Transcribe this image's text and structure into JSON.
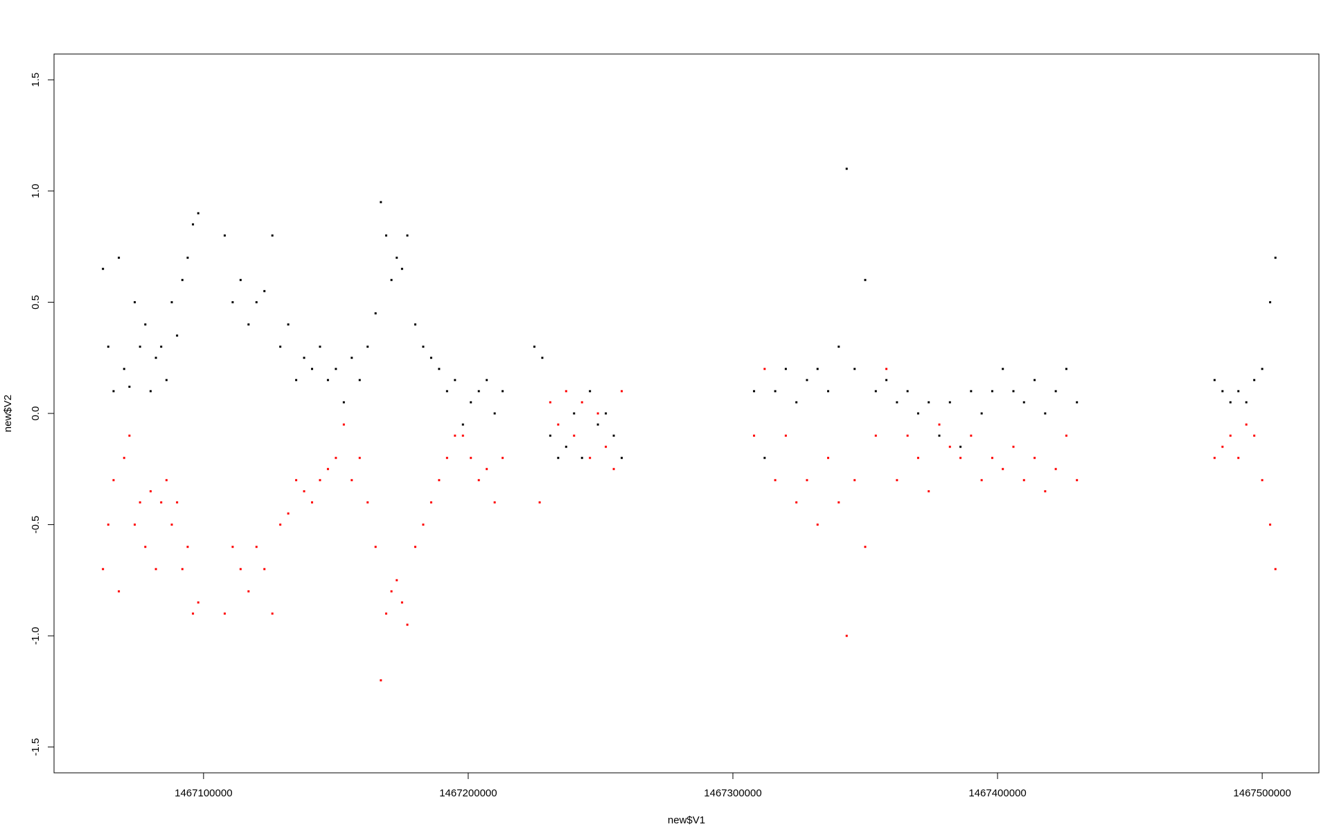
{
  "chart_data": {
    "type": "scatter",
    "xlabel": "new$V1",
    "ylabel": "new$V2",
    "xlim": [
      1467043506,
      1467521429
    ],
    "ylim": [
      -1.616,
      1.616
    ],
    "xticks": [
      1467100000,
      1467200000,
      1467300000,
      1467400000,
      1467500000
    ],
    "yticks": [
      -1.5,
      {
        "value": -1,
        "label": "-1.0"
      },
      -0.5,
      {
        "value": 0,
        "label": "0.0"
      },
      0.5,
      {
        "value": 1,
        "label": "1.0"
      },
      1.5
    ],
    "series": [
      {
        "color": "#000000",
        "x": [
          1467062000,
          1467064000,
          1467066000,
          1467068000,
          1467070000,
          1467072000,
          1467074000,
          1467076000,
          1467078000,
          1467080000,
          1467082000,
          1467084000,
          1467086000,
          1467088000,
          1467090000,
          1467092000,
          1467094000,
          1467096000,
          1467098000,
          1467108000,
          1467111000,
          1467114000,
          1467117000,
          1467120000,
          1467123000,
          1467126000,
          1467129000,
          1467132000,
          1467135000,
          1467138000,
          1467141000,
          1467144000,
          1467147000,
          1467150000,
          1467153000,
          1467156000,
          1467159000,
          1467162000,
          1467165000,
          1467167000,
          1467169000,
          1467171000,
          1467173000,
          1467175000,
          1467177000,
          1467180000,
          1467183000,
          1467186000,
          1467189000,
          1467192000,
          1467195000,
          1467198000,
          1467201000,
          1467204000,
          1467207000,
          1467210000,
          1467213000,
          1467225000,
          1467228000,
          1467231000,
          1467234000,
          1467237000,
          1467240000,
          1467243000,
          1467246000,
          1467249000,
          1467252000,
          1467255000,
          1467258000,
          1467308000,
          1467312000,
          1467316000,
          1467320000,
          1467324000,
          1467328000,
          1467332000,
          1467336000,
          1467340000,
          1467343000,
          1467346000,
          1467350000,
          1467354000,
          1467358000,
          1467362000,
          1467366000,
          1467370000,
          1467374000,
          1467378000,
          1467382000,
          1467386000,
          1467390000,
          1467394000,
          1467398000,
          1467402000,
          1467406000,
          1467410000,
          1467414000,
          1467418000,
          1467422000,
          1467426000,
          1467430000,
          1467482000,
          1467485000,
          1467488000,
          1467491000,
          1467494000,
          1467497000,
          1467500000,
          1467503000,
          1467505000
        ],
        "values": [
          0.65,
          0.3,
          0.1,
          0.7,
          0.2,
          0.12,
          0.5,
          0.3,
          0.4,
          0.1,
          0.25,
          0.3,
          0.15,
          0.5,
          0.35,
          0.6,
          0.7,
          0.85,
          0.9,
          0.8,
          0.5,
          0.6,
          0.4,
          0.5,
          0.55,
          0.8,
          0.3,
          0.4,
          0.15,
          0.25,
          0.2,
          0.3,
          0.15,
          0.2,
          0.05,
          0.25,
          0.15,
          0.3,
          0.45,
          0.95,
          0.8,
          0.6,
          0.7,
          0.65,
          0.8,
          0.4,
          0.3,
          0.25,
          0.2,
          0.1,
          0.15,
          -0.05,
          0.05,
          0.1,
          0.15,
          0.0,
          0.1,
          0.3,
          0.25,
          -0.1,
          -0.2,
          -0.15,
          0.0,
          -0.2,
          0.1,
          -0.05,
          0.0,
          -0.1,
          -0.2,
          0.1,
          -0.2,
          0.1,
          0.2,
          0.05,
          0.15,
          0.2,
          0.1,
          0.3,
          1.1,
          0.2,
          0.6,
          0.1,
          0.15,
          0.05,
          0.1,
          0.0,
          0.05,
          -0.1,
          0.05,
          -0.15,
          0.1,
          0.0,
          0.1,
          0.2,
          0.1,
          0.05,
          0.15,
          0.0,
          0.1,
          0.2,
          0.05,
          0.15,
          0.1,
          0.05,
          0.1,
          0.05,
          0.15,
          0.2,
          0.5,
          0.7
        ]
      },
      {
        "color": "#ff0000",
        "x": [
          1467062000,
          1467064000,
          1467066000,
          1467068000,
          1467070000,
          1467072000,
          1467074000,
          1467076000,
          1467078000,
          1467080000,
          1467082000,
          1467084000,
          1467086000,
          1467088000,
          1467090000,
          1467092000,
          1467094000,
          1467096000,
          1467098000,
          1467108000,
          1467111000,
          1467114000,
          1467117000,
          1467120000,
          1467123000,
          1467126000,
          1467129000,
          1467132000,
          1467135000,
          1467138000,
          1467141000,
          1467144000,
          1467147000,
          1467150000,
          1467153000,
          1467156000,
          1467159000,
          1467162000,
          1467165000,
          1467167000,
          1467169000,
          1467171000,
          1467173000,
          1467175000,
          1467177000,
          1467180000,
          1467183000,
          1467186000,
          1467189000,
          1467192000,
          1467195000,
          1467198000,
          1467201000,
          1467204000,
          1467207000,
          1467210000,
          1467213000,
          1467227000,
          1467231000,
          1467234000,
          1467237000,
          1467240000,
          1467243000,
          1467246000,
          1467249000,
          1467252000,
          1467255000,
          1467258000,
          1467308000,
          1467312000,
          1467316000,
          1467320000,
          1467324000,
          1467328000,
          1467332000,
          1467336000,
          1467340000,
          1467343000,
          1467346000,
          1467350000,
          1467354000,
          1467358000,
          1467362000,
          1467366000,
          1467370000,
          1467374000,
          1467378000,
          1467382000,
          1467386000,
          1467390000,
          1467394000,
          1467398000,
          1467402000,
          1467406000,
          1467410000,
          1467414000,
          1467418000,
          1467422000,
          1467426000,
          1467430000,
          1467482000,
          1467485000,
          1467488000,
          1467491000,
          1467494000,
          1467497000,
          1467500000,
          1467503000,
          1467505000
        ],
        "values": [
          -0.7,
          -0.5,
          -0.3,
          -0.8,
          -0.2,
          -0.1,
          -0.5,
          -0.4,
          -0.6,
          -0.35,
          -0.7,
          -0.4,
          -0.3,
          -0.5,
          -0.4,
          -0.7,
          -0.6,
          -0.9,
          -0.85,
          -0.9,
          -0.6,
          -0.7,
          -0.8,
          -0.6,
          -0.7,
          -0.9,
          -0.5,
          -0.45,
          -0.3,
          -0.35,
          -0.4,
          -0.3,
          -0.25,
          -0.2,
          -0.05,
          -0.3,
          -0.2,
          -0.4,
          -0.6,
          -1.2,
          -0.9,
          -0.8,
          -0.75,
          -0.85,
          -0.95,
          -0.6,
          -0.5,
          -0.4,
          -0.3,
          -0.2,
          -0.1,
          -0.1,
          -0.2,
          -0.3,
          -0.25,
          -0.4,
          -0.2,
          -0.4,
          0.05,
          -0.05,
          0.1,
          -0.1,
          0.05,
          -0.2,
          0.0,
          -0.15,
          -0.25,
          0.1,
          -0.1,
          0.2,
          -0.3,
          -0.1,
          -0.4,
          -0.3,
          -0.5,
          -0.2,
          -0.4,
          -1.0,
          -0.3,
          -0.6,
          -0.1,
          0.2,
          -0.3,
          -0.1,
          -0.2,
          -0.35,
          -0.05,
          -0.15,
          -0.2,
          -0.1,
          -0.3,
          -0.2,
          -0.25,
          -0.15,
          -0.3,
          -0.2,
          -0.35,
          -0.25,
          -0.1,
          -0.3,
          -0.2,
          -0.15,
          -0.1,
          -0.2,
          -0.05,
          -0.1,
          -0.3,
          -0.5,
          -0.7
        ]
      }
    ]
  }
}
